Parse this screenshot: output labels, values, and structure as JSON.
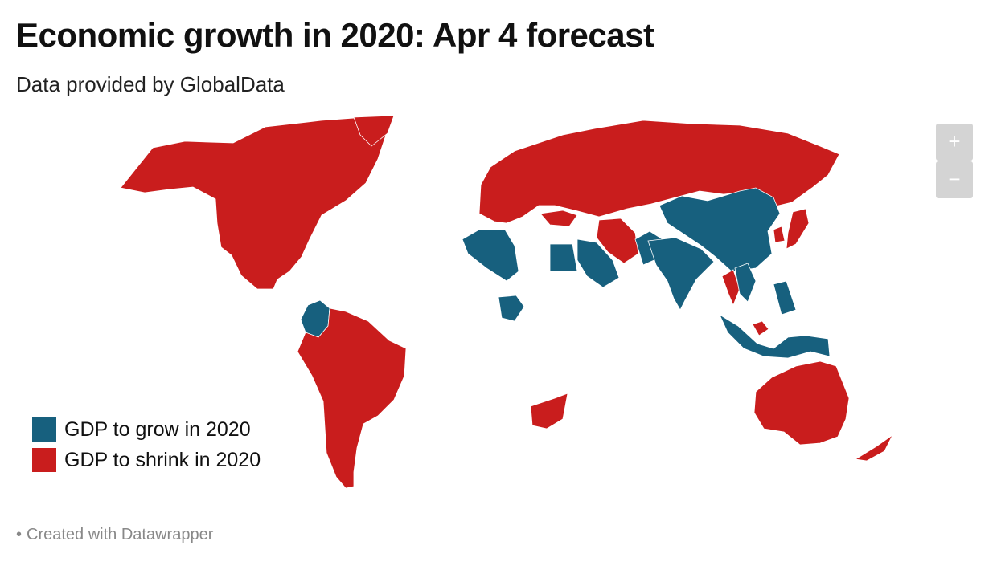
{
  "title": "Economic growth in 2020: Apr 4 forecast",
  "subtitle": "Data provided by GlobalData",
  "colors": {
    "grow": "#17607e",
    "shrink": "#c91d1d",
    "zoom_bg": "#d4d4d4"
  },
  "zoom": {
    "in_label": "+",
    "out_label": "−"
  },
  "legend": {
    "grow_label": "GDP to grow in 2020",
    "shrink_label": "GDP to shrink in 2020"
  },
  "footer": {
    "bullet": "•",
    "credit": "Created with Datawrapper"
  },
  "map": {
    "regions": [
      {
        "name": "North America",
        "category": "shrink"
      },
      {
        "name": "Greenland",
        "category": "shrink"
      },
      {
        "name": "Colombia",
        "category": "grow"
      },
      {
        "name": "South America",
        "category": "shrink"
      },
      {
        "name": "Europe and Russia",
        "category": "shrink"
      },
      {
        "name": "Turkey",
        "category": "shrink"
      },
      {
        "name": "Iran",
        "category": "shrink"
      },
      {
        "name": "Algeria",
        "category": "grow"
      },
      {
        "name": "Egypt",
        "category": "grow"
      },
      {
        "name": "Saudi Arabia",
        "category": "grow"
      },
      {
        "name": "Nigeria",
        "category": "grow"
      },
      {
        "name": "South Africa",
        "category": "shrink"
      },
      {
        "name": "Pakistan",
        "category": "grow"
      },
      {
        "name": "India",
        "category": "grow"
      },
      {
        "name": "China",
        "category": "grow"
      },
      {
        "name": "Thailand",
        "category": "shrink"
      },
      {
        "name": "Vietnam",
        "category": "grow"
      },
      {
        "name": "Philippines",
        "category": "grow"
      },
      {
        "name": "Malaysia",
        "category": "shrink"
      },
      {
        "name": "Indonesia",
        "category": "grow"
      },
      {
        "name": "South Korea",
        "category": "shrink"
      },
      {
        "name": "Japan",
        "category": "shrink"
      },
      {
        "name": "Australia",
        "category": "shrink"
      },
      {
        "name": "New Zealand",
        "category": "shrink"
      }
    ]
  }
}
